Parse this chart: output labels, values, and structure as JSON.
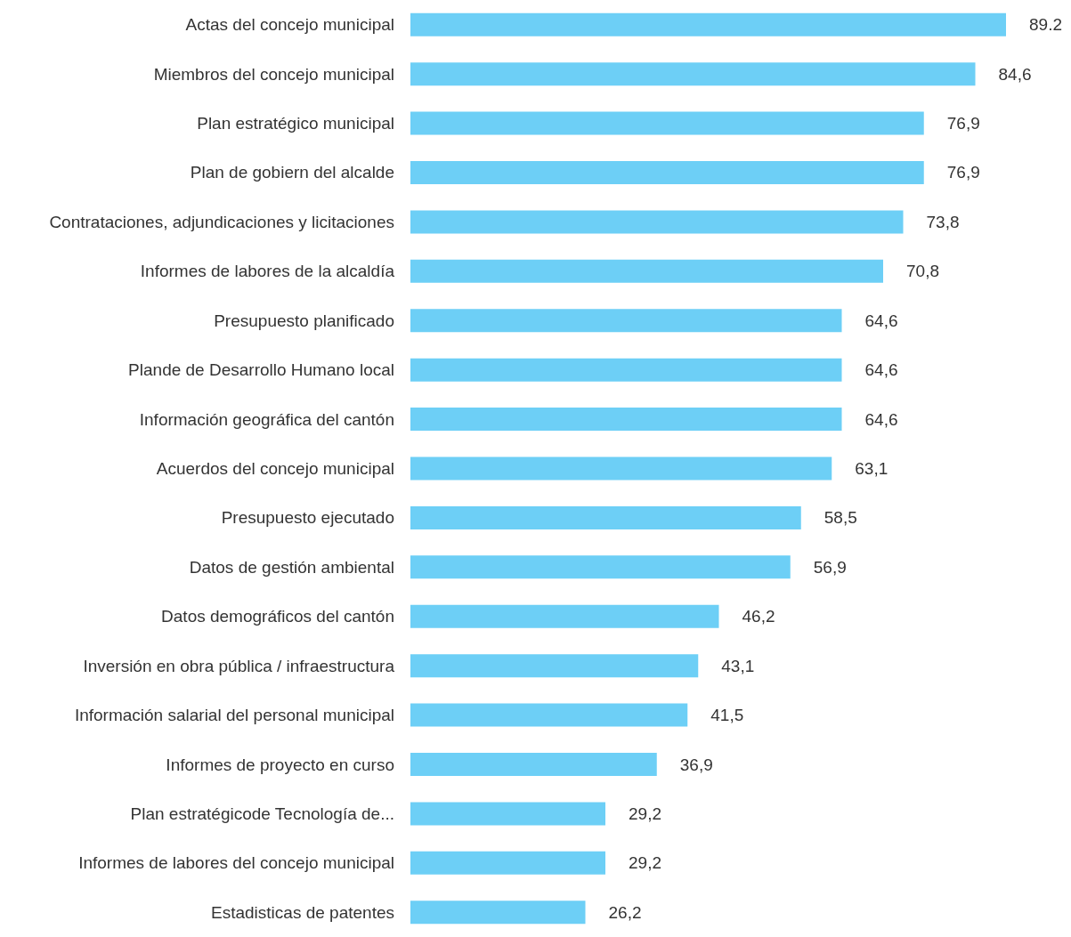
{
  "chart_data": {
    "type": "bar",
    "orientation": "horizontal",
    "color": "#6dcff6",
    "categories": [
      "Actas del concejo municipal",
      "Miembros del concejo municipal",
      "Plan estratégico municipal",
      "Plan de gobiern del alcalde",
      "Contrataciones, adjundicaciones y licitaciones",
      "Informes de labores de la alcaldía",
      "Presupuesto planificado",
      "Plande de Desarrollo Humano local",
      "Información geográfica del cantón",
      "Acuerdos del concejo municipal",
      "Presupuesto ejecutado",
      "Datos de gestión ambiental",
      "Datos demográficos del cantón",
      "Inversión en obra pública / infraestructura",
      "Información salarial del personal municipal",
      "Informes de proyecto en curso",
      "Plan estratégicode Tecnología de...",
      "Informes de labores del concejo municipal",
      "Estadisticas de patentes"
    ],
    "values": [
      89.2,
      84.6,
      76.9,
      76.9,
      73.8,
      70.8,
      64.6,
      64.6,
      64.6,
      63.1,
      58.5,
      56.9,
      46.2,
      43.1,
      41.5,
      36.9,
      29.2,
      29.2,
      26.2
    ],
    "value_labels": [
      "89.2",
      "84,6",
      "76,9",
      "76,9",
      "73,8",
      "70,8",
      "64,6",
      "64,6",
      "64,6",
      "63,1",
      "58,5",
      "56,9",
      "46,2",
      "43,1",
      "41,5",
      "36,9",
      "29,2",
      "29,2",
      "26,2"
    ],
    "tick_labels": "y"
  }
}
